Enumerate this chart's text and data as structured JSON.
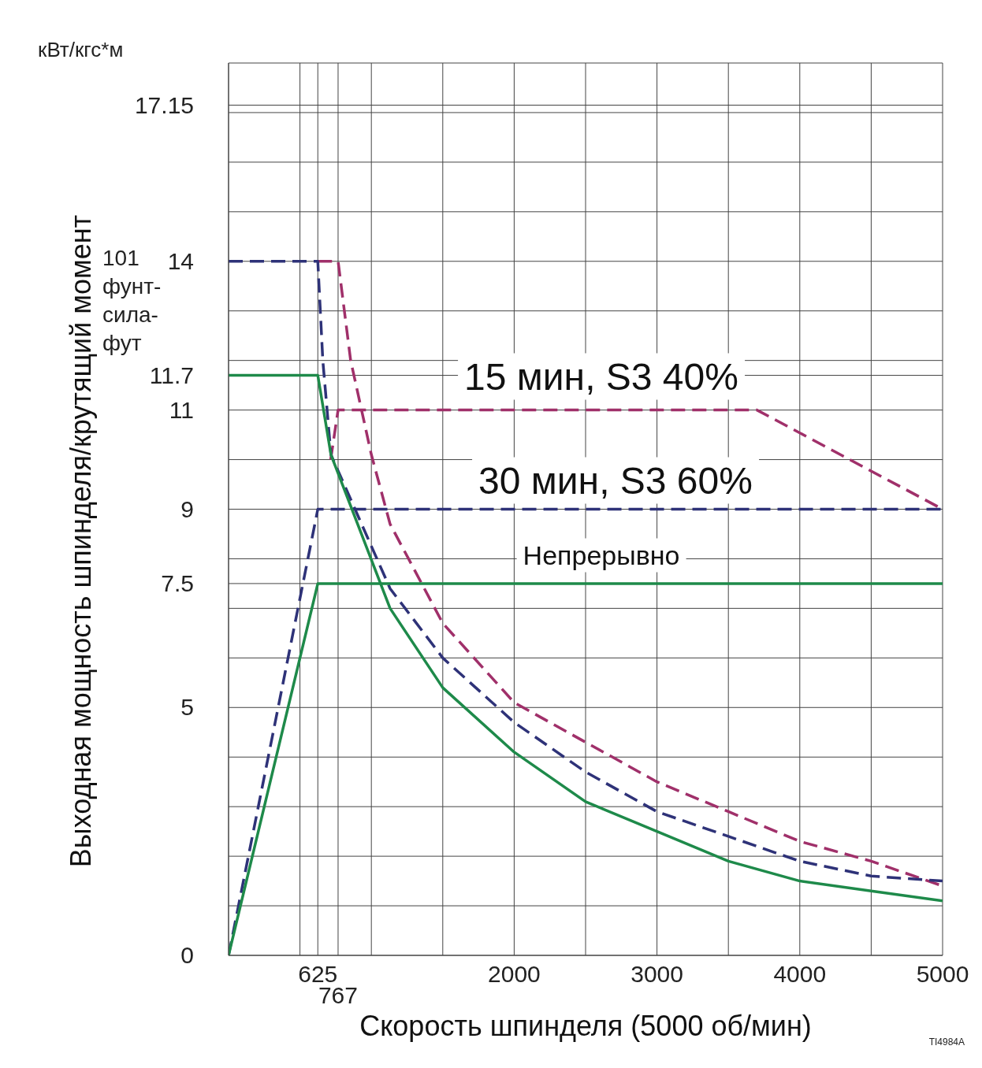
{
  "chart_data": {
    "type": "line",
    "xlabel": "Скорость шпинделя (5000 об/мин)",
    "ylabel": "Выходная мощность шпинделя/крутящий момент",
    "annotations": [
      "кВт/кгс*м",
      "101 фунт-сила-фут",
      "TI4984A",
      "767"
    ],
    "xlim": [
      0,
      5000
    ],
    "ylim": [
      0,
      18
    ],
    "xticks": [
      {
        "value": 500,
        "label": null
      },
      625,
      {
        "value": 767,
        "label": null
      },
      {
        "value": 1000,
        "label": null
      },
      {
        "value": 1500,
        "label": null
      },
      2000,
      {
        "value": 2500,
        "label": null
      },
      3000,
      {
        "value": 3500,
        "label": null
      },
      4000,
      {
        "value": 4500,
        "label": null
      },
      5000
    ],
    "yticks": [
      0,
      {
        "value": 1,
        "label": null
      },
      {
        "value": 2,
        "label": null
      },
      {
        "value": 3,
        "label": null
      },
      {
        "value": 4,
        "label": null
      },
      5,
      {
        "value": 6,
        "label": null
      },
      {
        "value": 7,
        "label": null
      },
      7.5,
      {
        "value": 8,
        "label": null
      },
      9,
      {
        "value": 10,
        "label": null
      },
      11,
      11.7,
      {
        "value": 12,
        "label": null
      },
      {
        "value": 13,
        "label": null
      },
      14,
      {
        "value": 15,
        "label": null
      },
      {
        "value": 16,
        "label": null
      },
      {
        "value": 17,
        "label": null
      },
      17.15,
      {
        "value": 18,
        "label": null
      }
    ],
    "grid": true,
    "legend": false,
    "marker": "none",
    "series": [
      {
        "name": "15 мин, S3 40%",
        "color": "#a0306a",
        "line_style": "dashed",
        "x": [
          715,
          767,
          3700,
          5000
        ],
        "values": [
          10,
          11,
          11,
          9
        ]
      },
      {
        "color": "#a0306a",
        "line_style": "dashed",
        "x": [
          625,
          767,
          855,
          1000,
          1131,
          1500,
          2000,
          2500,
          3000,
          3500,
          4000,
          4500,
          5000
        ],
        "values": [
          14,
          14,
          12,
          10.1,
          8.7,
          6.7,
          5.1,
          4.3,
          3.5,
          2.9,
          2.3,
          1.9,
          1.4
        ]
      },
      {
        "name": "30 мин, S3 60%",
        "color": "#2e3278",
        "line_style": "dashed",
        "x": [
          0,
          625,
          5000
        ],
        "values": [
          0,
          9,
          9
        ]
      },
      {
        "color": "#2e3278",
        "line_style": "dashed",
        "x": [
          0,
          625,
          660,
          717,
          1131,
          1500,
          2000,
          2500,
          3000,
          3500,
          4000,
          4500,
          5000
        ],
        "values": [
          14,
          14,
          12,
          10.1,
          7.4,
          6,
          4.7,
          3.7,
          2.9,
          2.4,
          1.9,
          1.6,
          1.5
        ]
      },
      {
        "name": "Непрерывно",
        "color": "#1e8a4a",
        "line_style": "solid",
        "x": [
          0,
          625,
          5000
        ],
        "values": [
          0,
          7.5,
          7.5
        ]
      },
      {
        "color": "#1e8a4a",
        "line_style": "solid",
        "x": [
          0,
          625,
          717,
          1131,
          1500,
          2000,
          2500,
          3000,
          3500,
          4000,
          4500,
          5000
        ],
        "values": [
          11.7,
          11.7,
          10.1,
          7,
          5.4,
          4.1,
          3.1,
          2.5,
          1.9,
          1.5,
          1.3,
          1.1
        ]
      }
    ]
  }
}
